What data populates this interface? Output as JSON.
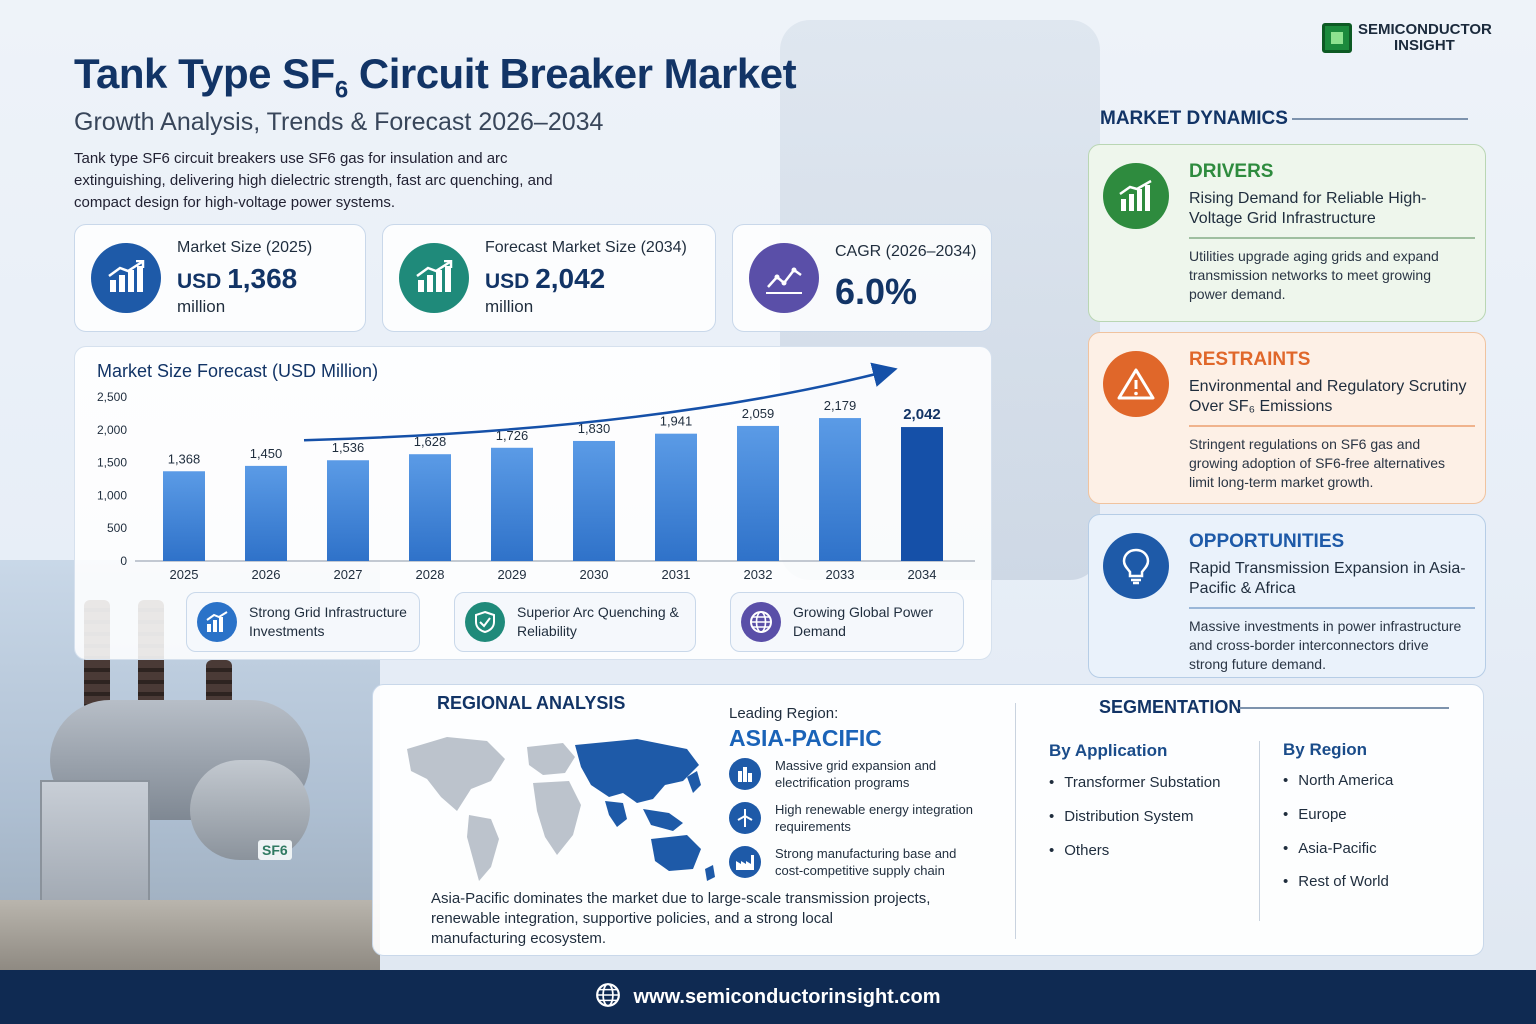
{
  "brand": {
    "logo_line1": "SEMICONDUCTOR",
    "logo_line2": "INSIGHT"
  },
  "header": {
    "title_part1": "Tank Type SF",
    "title_sub": "6",
    "title_part2": " Circuit Breaker Market",
    "subtitle": "Growth Analysis, Trends & Forecast 2026–2034",
    "intro": "Tank type SF6 circuit breakers use SF6 gas for insulation and arc extinguishing, delivering high dielectric strength, fast arc quenching, and compact design for high-voltage power systems."
  },
  "kpis": [
    {
      "label": "Market Size (2025)",
      "prefix": "USD ",
      "value": "1,368",
      "unit": "million",
      "icon": "bar-growth-icon",
      "color": "#1e5aa8"
    },
    {
      "label": "Forecast Market Size (2034)",
      "prefix": "USD ",
      "value": "2,042",
      "unit": "million",
      "icon": "bar-growth-icon",
      "color": "#1f8a7a"
    },
    {
      "label": "CAGR (2026–2034)",
      "value": "6.0%",
      "icon": "line-chart-icon",
      "color": "#5a4fa8"
    }
  ],
  "chart_data": {
    "type": "bar",
    "title": "Market Size Forecast (USD Million)",
    "categories": [
      "2025",
      "2026",
      "2027",
      "2028",
      "2029",
      "2030",
      "2031",
      "2032",
      "2033",
      "2034"
    ],
    "values": [
      1368,
      1450,
      1536,
      1628,
      1726,
      1830,
      1941,
      2059,
      2179,
      2042
    ],
    "value_labels": [
      "1,368",
      "1,450",
      "1,536",
      "1,628",
      "1,726",
      "1,830",
      "1,941",
      "2,059",
      "2,179",
      "2,042"
    ],
    "yticks": [
      "0",
      "500",
      "1,000",
      "1,500",
      "2,000",
      "2,500"
    ],
    "ylim": [
      0,
      2500
    ],
    "highlight_index": 9,
    "bar_color": "#4d8fdc",
    "highlight_color": "#1550a8",
    "trend_arrow": true,
    "xlabel": "",
    "ylabel": ""
  },
  "features": [
    {
      "text": "Strong Grid Infrastructure Investments",
      "icon": "bar-growth-icon",
      "color": "#2a72c8"
    },
    {
      "text": "Superior Arc Quenching & Reliability",
      "icon": "shield-check-icon",
      "color": "#1f8a7a"
    },
    {
      "text": "Growing Global Power Demand",
      "icon": "globe-icon",
      "color": "#5a4fa8"
    }
  ],
  "dynamics": {
    "heading": "MARKET DYNAMICS",
    "items": [
      {
        "title": "DRIVERS",
        "subtitle": "Rising Demand for Reliable High-Voltage Grid Infrastructure",
        "desc": "Utilities upgrade aging grids and expand transmission networks to meet growing power demand.",
        "icon": "bar-growth-icon",
        "color": "#2e8b3e"
      },
      {
        "title": "RESTRAINTS",
        "subtitle": "Environmental and Regulatory Scrutiny Over SF₆ Emissions",
        "desc": "Stringent regulations on SF6 gas and growing adoption of SF6-free alternatives limit long-term market growth.",
        "icon": "warning-icon",
        "color": "#e0672a"
      },
      {
        "title": "OPPORTUNITIES",
        "subtitle": "Rapid Transmission Expansion in Asia-Pacific & Africa",
        "desc": "Massive investments in power infrastructure and cross-border interconnectors drive strong future demand.",
        "icon": "lightbulb-icon",
        "color": "#1e5aa8"
      }
    ]
  },
  "regional": {
    "heading": "REGIONAL ANALYSIS",
    "leading_label": "Leading Region:",
    "leading_value": "ASIA-PACIFIC",
    "points": [
      {
        "text": "Massive grid expansion and electrification programs",
        "icon": "city-icon"
      },
      {
        "text": "High renewable energy integration requirements",
        "icon": "wind-turbine-icon"
      },
      {
        "text": "Strong manufacturing base and cost-competitive supply chain",
        "icon": "factory-icon"
      }
    ],
    "description": "Asia-Pacific dominates the market due to large-scale transmission projects, renewable integration, supportive policies, and a strong local manufacturing ecosystem."
  },
  "segmentation": {
    "heading": "SEGMENTATION",
    "by_application": {
      "title": "By Application",
      "items": [
        "Transformer Substation",
        "Distribution System",
        "Others"
      ]
    },
    "by_region": {
      "title": "By Region",
      "items": [
        "North America",
        "Europe",
        "Asia-Pacific",
        "Rest of World"
      ]
    }
  },
  "footer": {
    "url": "www.semiconductorinsight.com",
    "icon": "globe-icon"
  }
}
